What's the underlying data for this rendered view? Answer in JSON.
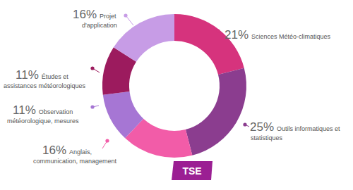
{
  "chart_data": {
    "type": "donut",
    "categories": [
      "Sciences Météo-climatiques",
      "Outils informatiques et statistiques",
      "Anglais, communication, management",
      "Observation météorologique, mesures",
      "Études et assistances météorologiques",
      "Projet d'application"
    ],
    "values": [
      21,
      25,
      16,
      11,
      11,
      16
    ],
    "value_labels": [
      "21%",
      "25%",
      "16%",
      "11%",
      "11%",
      "16%"
    ],
    "colors": [
      "#d6337d",
      "#8b3d8f",
      "#f25ca8",
      "#a676d4",
      "#9c1b5e",
      "#c79ce6"
    ],
    "data_labels": true,
    "annotations": [
      "TSE"
    ]
  }
}
